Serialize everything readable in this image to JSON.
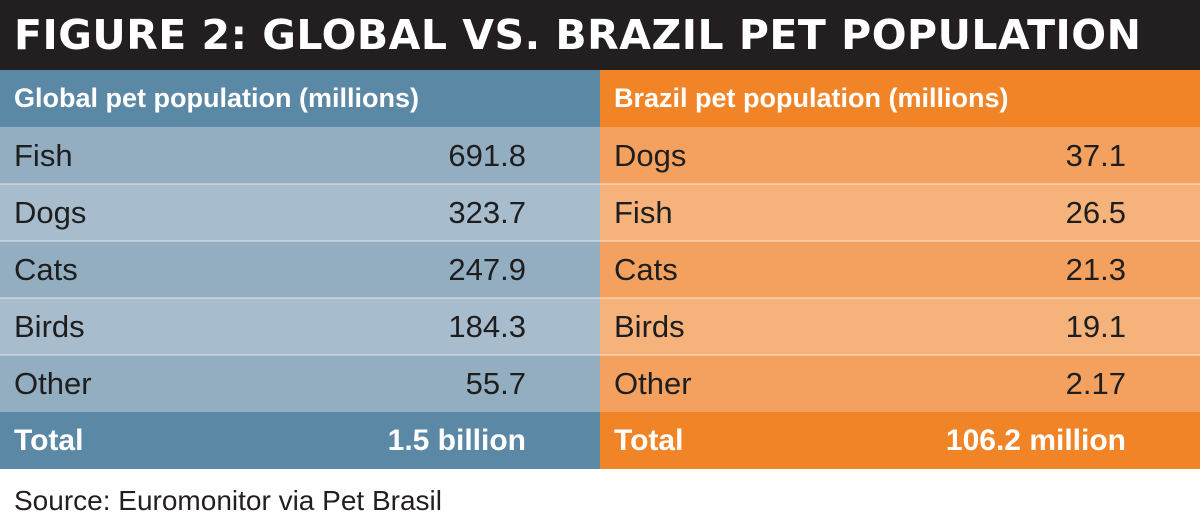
{
  "title": "FIGURE 2: GLOBAL VS. BRAZIL PET POPULATION",
  "colors": {
    "title_bg": "#231f20",
    "global_dark": "#5b88a5",
    "global_light": "#a7bccd",
    "brazil_dark": "#f08427",
    "brazil_light": "#f6b27b"
  },
  "chart_data": {
    "type": "table",
    "tables": [
      {
        "header": "Global pet population (millions)",
        "rows": [
          {
            "label": "Fish",
            "value": "691.8"
          },
          {
            "label": "Dogs",
            "value": "323.7"
          },
          {
            "label": "Cats",
            "value": "247.9"
          },
          {
            "label": "Birds",
            "value": "184.3"
          },
          {
            "label": "Other",
            "value": "55.7"
          }
        ],
        "total": {
          "label": "Total",
          "value": "1.5 billion"
        }
      },
      {
        "header": "Brazil pet population (millions)",
        "rows": [
          {
            "label": "Dogs",
            "value": "37.1"
          },
          {
            "label": "Fish",
            "value": "26.5"
          },
          {
            "label": "Cats",
            "value": "21.3"
          },
          {
            "label": "Birds",
            "value": "19.1"
          },
          {
            "label": "Other",
            "value": "2.17"
          }
        ],
        "total": {
          "label": "Total",
          "value": "106.2 million"
        }
      }
    ]
  },
  "source": "Source: Euromonitor via Pet Brasil"
}
